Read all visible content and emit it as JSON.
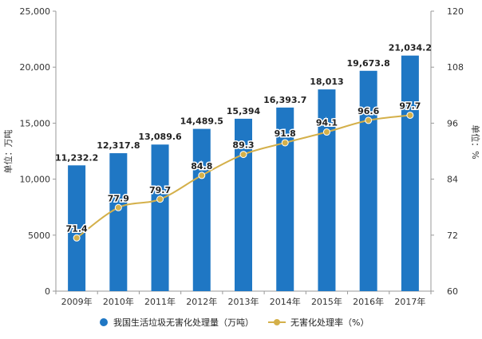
{
  "chart_data": {
    "type": "bar",
    "categories": [
      "2009年",
      "2010年",
      "2011年",
      "2012年",
      "2013年",
      "2014年",
      "2015年",
      "2016年",
      "2017年"
    ],
    "series": [
      {
        "name": "我国生活垃圾无害化处理量（万吨）",
        "type": "bar",
        "axis": "left",
        "values": [
          11232.2,
          12317.8,
          13089.6,
          14489.5,
          15394,
          16393.7,
          18013,
          19673.8,
          21034.2
        ],
        "labels": [
          "11,232.2",
          "12,317.8",
          "13,089.6",
          "14,489.5",
          "15,394",
          "16,393.7",
          "18,013",
          "19,673.8",
          "21,034.2"
        ],
        "color": "#1f77c4"
      },
      {
        "name": "无害化处理率（%）",
        "type": "line",
        "axis": "right",
        "values": [
          71.4,
          77.9,
          79.7,
          84.8,
          89.3,
          91.8,
          94.1,
          96.6,
          97.7
        ],
        "labels": [
          "71.4",
          "77.9",
          "79.7",
          "84.8",
          "89.3",
          "91.8",
          "94.1",
          "96.6",
          "97.7"
        ],
        "color": "#d4b04a"
      }
    ],
    "ylabel_left": "单位：万吨",
    "ylabel_right": "单位：%",
    "ylim_left": [
      0,
      25000
    ],
    "yticks_left": [
      0,
      5000,
      10000,
      15000,
      20000,
      25000
    ],
    "ytick_labels_left": [
      "0",
      "5000",
      "10,000",
      "15,000",
      "20,000",
      "25,000"
    ],
    "ylim_right": [
      60,
      120
    ],
    "yticks_right": [
      60,
      72,
      84,
      96,
      108,
      120
    ],
    "ytick_labels_right": [
      "60",
      "72",
      "84",
      "96",
      "108",
      "120"
    ],
    "grid": false,
    "legend_position": "bottom",
    "colors": {
      "bar": "#1f77c4",
      "line": "#d4b04a",
      "axis": "#999999",
      "text": "#333333"
    }
  }
}
